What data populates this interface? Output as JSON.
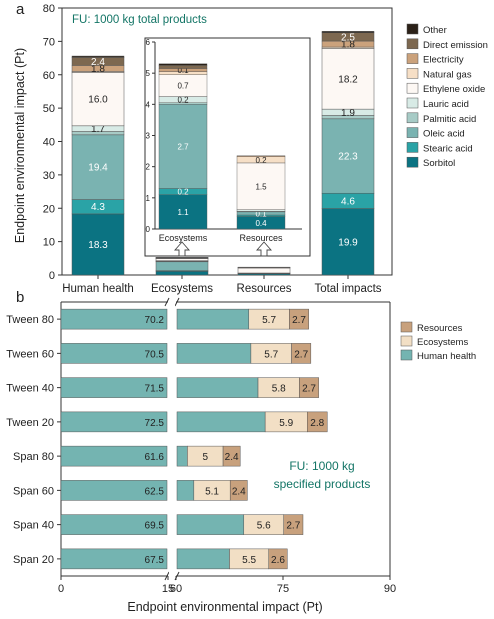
{
  "panel_labels": {
    "a": "a",
    "b": "b"
  },
  "chart_data": [
    {
      "id": "a",
      "type": "bar",
      "stacked": true,
      "ylabel": "Endpoint environmental impact (Pt)",
      "ylim": [
        0,
        80
      ],
      "yticks": [
        0,
        10,
        20,
        30,
        40,
        50,
        60,
        70,
        80
      ],
      "annotation": "FU: 1000 kg total products",
      "categories": [
        "Human health",
        "Ecosystems",
        "Resources",
        "Total impacts"
      ],
      "legend_position": "right",
      "series": [
        {
          "name": "Sorbitol",
          "color": "#0b7382",
          "values": [
            18.3,
            1.1,
            0.4,
            19.9
          ],
          "labels": [
            "18.3",
            "",
            "",
            "19.9"
          ]
        },
        {
          "name": "Stearic acid",
          "color": "#2aa3a6",
          "values": [
            4.3,
            0.2,
            0.0,
            4.6
          ],
          "labels": [
            "4.3",
            "",
            "",
            "4.6"
          ]
        },
        {
          "name": "Oleic acid",
          "color": "#7ab3b1",
          "values": [
            19.4,
            2.7,
            0.1,
            22.3
          ],
          "labels": [
            "19.4",
            "",
            "",
            "22.3"
          ]
        },
        {
          "name": "Palmitic acid",
          "color": "#a7cbc6",
          "values": [
            1.0,
            0.1,
            0.0,
            1.0
          ],
          "labels": [
            "",
            "",
            "",
            ""
          ]
        },
        {
          "name": "Lauric acid",
          "color": "#d8ebe6",
          "values": [
            1.7,
            0.2,
            0.1,
            1.9
          ],
          "labels": [
            "1.7",
            "",
            "",
            "1.9"
          ]
        },
        {
          "name": "Ethylene oxide",
          "color": "#fdf8f4",
          "values": [
            16.0,
            0.7,
            1.5,
            18.2
          ],
          "labels": [
            "16.0",
            "",
            "",
            "18.2"
          ]
        },
        {
          "name": "Natural gas",
          "color": "#f6dfc6",
          "values": [
            0.3,
            0.05,
            0.2,
            0.4
          ],
          "labels": [
            "",
            "",
            "",
            ""
          ]
        },
        {
          "name": "Electricity",
          "color": "#cba27c",
          "values": [
            1.8,
            0.1,
            0.05,
            1.8
          ],
          "labels": [
            "1.8",
            "",
            "",
            "1.8"
          ]
        },
        {
          "name": "Direct emission",
          "color": "#7d6850",
          "values": [
            2.4,
            0.1,
            0.0,
            2.5
          ],
          "labels": [
            "2.4",
            "",
            "",
            "2.5"
          ]
        },
        {
          "name": "Other",
          "color": "#2b2118",
          "values": [
            0.4,
            0.05,
            0.0,
            0.4
          ],
          "labels": [
            "",
            "",
            "",
            ""
          ]
        }
      ],
      "inset": {
        "ylim": [
          0,
          6
        ],
        "yticks": [
          0,
          1,
          2,
          3,
          4,
          5,
          6
        ],
        "categories": [
          "Ecosystems",
          "Resources"
        ],
        "stacks": [
          [
            {
              "series": "Sorbitol",
              "value": 1.1,
              "label": "1.1"
            },
            {
              "series": "Stearic acid",
              "value": 0.2,
              "label": "0.2"
            },
            {
              "series": "Oleic acid",
              "value": 2.7,
              "label": "2.7"
            },
            {
              "series": "Palmitic acid",
              "value": 0.05,
              "label": ""
            },
            {
              "series": "Lauric acid",
              "value": 0.2,
              "label": "0.2"
            },
            {
              "series": "Ethylene oxide",
              "value": 0.7,
              "label": "0.7"
            },
            {
              "series": "Natural gas",
              "value": 0.1,
              "label": ""
            },
            {
              "series": "Electricity",
              "value": 0.1,
              "label": "0.1"
            },
            {
              "series": "Direct emission",
              "value": 0.1,
              "label": ""
            },
            {
              "series": "Other",
              "value": 0.05,
              "label": ""
            }
          ],
          [
            {
              "series": "Sorbitol",
              "value": 0.4,
              "label": "0.4"
            },
            {
              "series": "Stearic acid",
              "value": 0.05,
              "label": ""
            },
            {
              "series": "Oleic acid",
              "value": 0.1,
              "label": "0.1"
            },
            {
              "series": "Palmitic acid",
              "value": 0.02,
              "label": ""
            },
            {
              "series": "Lauric acid",
              "value": 0.05,
              "label": ""
            },
            {
              "series": "Ethylene oxide",
              "value": 1.5,
              "label": "1.5"
            },
            {
              "series": "Natural gas",
              "value": 0.2,
              "label": "0.2"
            },
            {
              "series": "Electricity",
              "value": 0.03,
              "label": ""
            }
          ]
        ]
      }
    },
    {
      "id": "b",
      "type": "bar",
      "orientation": "horizontal",
      "stacked": true,
      "xlabel": "Endpoint environmental impact (Pt)",
      "broken_axis": {
        "left_range": [
          0,
          15
        ],
        "right_range": [
          60,
          90
        ]
      },
      "xticks": [
        "0",
        "15",
        "60",
        "75",
        "90"
      ],
      "annotation": "FU: 1000 kg\nspecified  products",
      "categories": [
        "Tween 80",
        "Tween 60",
        "Tween 40",
        "Tween 20",
        "Span 80",
        "Span 60",
        "Span 40",
        "Span 20"
      ],
      "legend_position": "top-right",
      "series": [
        {
          "name": "Human health",
          "color": "#74b4b1",
          "values": [
            70.2,
            70.5,
            71.5,
            72.5,
            61.6,
            62.5,
            69.5,
            67.5
          ]
        },
        {
          "name": "Ecosystems",
          "color": "#f2dfc5",
          "values": [
            5.7,
            5.7,
            5.8,
            5.9,
            5.0,
            5.1,
            5.6,
            5.5
          ]
        },
        {
          "name": "Resources",
          "color": "#c8a17d",
          "values": [
            2.7,
            2.7,
            2.7,
            2.8,
            2.4,
            2.4,
            2.7,
            2.6
          ]
        }
      ]
    }
  ]
}
